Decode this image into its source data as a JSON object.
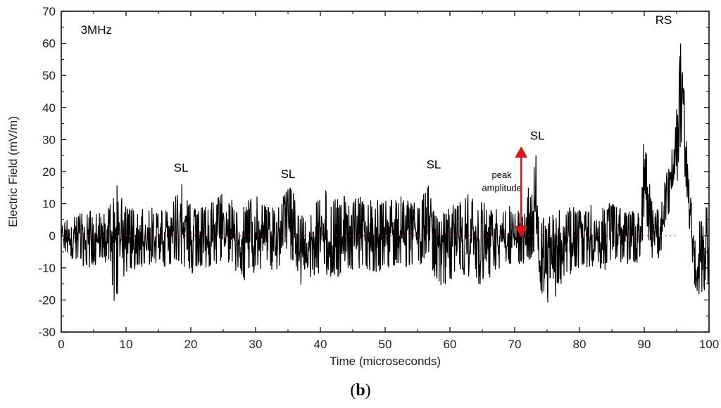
{
  "caption": {
    "open": "(",
    "letter": "b",
    "close": ")"
  },
  "chart_data": {
    "type": "line",
    "title": "",
    "xlabel": "Time (microseconds)",
    "ylabel": "Electric Field (mV/m)",
    "xlim": [
      0,
      100
    ],
    "ylim": [
      -30,
      70
    ],
    "xticks": [
      0,
      10,
      20,
      30,
      40,
      50,
      60,
      70,
      80,
      90,
      100
    ],
    "yticks": [
      -30,
      -20,
      -10,
      0,
      10,
      20,
      30,
      40,
      50,
      60,
      70
    ],
    "grid": false,
    "legend": "none",
    "series_color": "#000000",
    "baseline": {
      "y": 0,
      "color": "#e01010",
      "style": "dotted",
      "x_range": [
        0,
        95
      ]
    },
    "annotations": [
      {
        "text": "3MHz",
        "x": 3,
        "y": 63
      },
      {
        "text": "SL",
        "x": 18.5,
        "y": 20
      },
      {
        "text": "SL",
        "x": 35,
        "y": 18
      },
      {
        "text": "SL",
        "x": 57.5,
        "y": 21
      },
      {
        "text": "SL",
        "x": 73.5,
        "y": 30
      },
      {
        "text": "RS",
        "x": 93,
        "y": 66
      },
      {
        "text": "peak",
        "x": 68,
        "y": 18
      },
      {
        "text": "amplitude",
        "x": 68,
        "y": 14
      }
    ],
    "arrow": {
      "x": 71,
      "y_from": 0,
      "y_to": 27,
      "color": "#e01010"
    },
    "envelope": [
      [
        0,
        -4,
        4
      ],
      [
        2,
        -8,
        7
      ],
      [
        4,
        -10,
        8
      ],
      [
        6,
        -9,
        8
      ],
      [
        7.5,
        -8,
        9
      ],
      [
        8.2,
        -22,
        19
      ],
      [
        9,
        -16,
        14
      ],
      [
        10,
        -12,
        9
      ],
      [
        12,
        -10,
        8
      ],
      [
        14,
        -9,
        9
      ],
      [
        16,
        -10,
        8
      ],
      [
        18.5,
        -9,
        17
      ],
      [
        20,
        -11,
        10
      ],
      [
        21,
        -18,
        9
      ],
      [
        22.5,
        -12,
        9
      ],
      [
        24,
        -9,
        12
      ],
      [
        25.5,
        -10,
        14
      ],
      [
        27,
        -12,
        9
      ],
      [
        28,
        -14,
        10
      ],
      [
        30,
        -12,
        13
      ],
      [
        32,
        -10,
        9
      ],
      [
        33.5,
        -12,
        10
      ],
      [
        35.5,
        -9,
        16
      ],
      [
        36.5,
        -14,
        8
      ],
      [
        37.5,
        -17,
        6
      ],
      [
        39,
        -13,
        10
      ],
      [
        40.5,
        -12,
        15
      ],
      [
        42,
        -14,
        11
      ],
      [
        44,
        -11,
        13
      ],
      [
        46,
        -10,
        12
      ],
      [
        48,
        -11,
        12
      ],
      [
        50,
        -12,
        11
      ],
      [
        52,
        -10,
        13
      ],
      [
        54,
        -11,
        11
      ],
      [
        55.5,
        -9,
        10
      ],
      [
        56.7,
        -6,
        19
      ],
      [
        57.5,
        -13,
        8
      ],
      [
        58.5,
        -18,
        6
      ],
      [
        60,
        -14,
        9
      ],
      [
        62,
        -12,
        14
      ],
      [
        64,
        -14,
        11
      ],
      [
        65,
        -17,
        11
      ],
      [
        66.5,
        -13,
        9
      ],
      [
        68,
        -10,
        10
      ],
      [
        70,
        -9,
        9
      ],
      [
        71.5,
        -9,
        8
      ],
      [
        72.5,
        -8,
        20
      ],
      [
        73.3,
        -10,
        28
      ],
      [
        74,
        -18,
        7
      ],
      [
        75,
        -24,
        6
      ],
      [
        76.5,
        -19,
        10
      ],
      [
        78,
        -13,
        9
      ],
      [
        80,
        -10,
        9
      ],
      [
        82,
        -10,
        10
      ],
      [
        84,
        -11,
        11
      ],
      [
        86,
        -9,
        9
      ],
      [
        88,
        -9,
        8
      ],
      [
        89.5,
        -8,
        8
      ],
      [
        90,
        5,
        35
      ],
      [
        90.6,
        0,
        20
      ],
      [
        91.5,
        -10,
        7
      ],
      [
        92.5,
        -6,
        10
      ],
      [
        93.5,
        5,
        20
      ],
      [
        94.5,
        10,
        30
      ],
      [
        95.2,
        18,
        45
      ],
      [
        95.8,
        28,
        69
      ],
      [
        96.3,
        18,
        40
      ],
      [
        97,
        0,
        15
      ],
      [
        98,
        -20,
        -2
      ],
      [
        99,
        -18,
        10
      ],
      [
        100,
        -17,
        10
      ]
    ]
  }
}
